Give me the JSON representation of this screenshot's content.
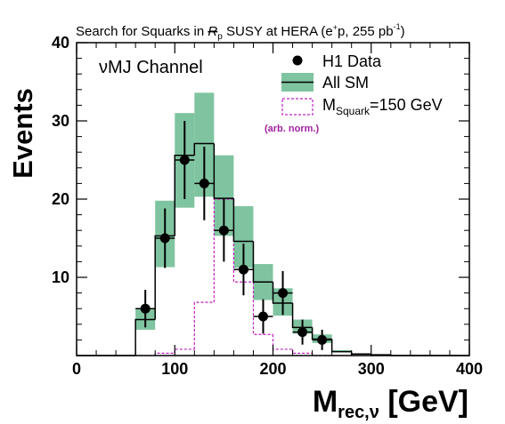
{
  "chart_data": {
    "type": "bar",
    "title_parts": {
      "pre": "Search for Squarks in ",
      "rp_symbol": "R",
      "rp_sub": "p",
      "post": " SUSY at HERA (e",
      "beam_sup": "+",
      "post2": "p, 255 pb",
      "lumi_sup": "-1",
      "close": ")"
    },
    "channel_label": "νMJ Channel",
    "ylabel": "Events",
    "xlabel_main": "M",
    "xlabel_sub": "rec,ν",
    "xlabel_unit": " [GeV]",
    "xlim": [
      0,
      400
    ],
    "ylim": [
      0,
      40
    ],
    "xticks": [
      0,
      100,
      200,
      300,
      400
    ],
    "yticks": [
      10,
      20,
      30,
      40
    ],
    "legend": {
      "placement": "top-right",
      "data_label": "H1 Data",
      "sm_label": "All SM",
      "signal_label_main": "M",
      "signal_label_sub": "Squark",
      "signal_label_post": "=150 GeV",
      "signal_note": "(arb. norm.)"
    },
    "bin_edges": [
      0,
      20,
      40,
      60,
      80,
      100,
      120,
      140,
      160,
      180,
      200,
      220,
      240,
      260,
      280,
      300,
      320,
      340,
      360,
      380,
      400
    ],
    "series": [
      {
        "name": "All SM",
        "values": [
          0,
          0,
          0,
          4.6,
          15.3,
          25.6,
          27.1,
          20.1,
          14.6,
          9.4,
          6.7,
          3.6,
          2.1,
          0.5,
          0.2,
          0.1,
          0,
          0,
          0,
          0
        ],
        "band_low": [
          0,
          0,
          0,
          3.3,
          11.3,
          18.9,
          20.3,
          15.3,
          11.2,
          7.1,
          5.1,
          2.8,
          1.6,
          0.4,
          0.1,
          0.05,
          0,
          0,
          0,
          0
        ],
        "band_high": [
          0,
          0,
          0,
          5.9,
          19.8,
          31.0,
          33.6,
          25.6,
          19.1,
          11.7,
          8.6,
          4.6,
          2.7,
          0.7,
          0.25,
          0.15,
          0,
          0,
          0,
          0
        ],
        "color": "#7fc4a0",
        "line_color": "#000000"
      },
      {
        "name": "M_Squark=150 GeV",
        "values": [
          0,
          0,
          0,
          0,
          0.3,
          0.8,
          6.8,
          20.0,
          9.4,
          2.7,
          0.8,
          0.3,
          0,
          0,
          0,
          0,
          0,
          0,
          0,
          0
        ],
        "color": "#c020c0"
      }
    ],
    "data_points": {
      "name": "H1 Data",
      "x": [
        70,
        90,
        110,
        130,
        150,
        170,
        190,
        210,
        230,
        250
      ],
      "y": [
        6,
        15,
        25,
        22,
        16,
        11,
        5,
        8,
        3,
        2
      ],
      "err_low": [
        2.4,
        3.8,
        5.0,
        4.7,
        4.0,
        3.3,
        2.2,
        2.8,
        1.6,
        1.3
      ],
      "err_high": [
        2.4,
        3.8,
        5.0,
        4.7,
        4.0,
        3.3,
        2.2,
        2.8,
        1.6,
        1.3
      ],
      "xerr": 10,
      "color": "#000000"
    }
  }
}
